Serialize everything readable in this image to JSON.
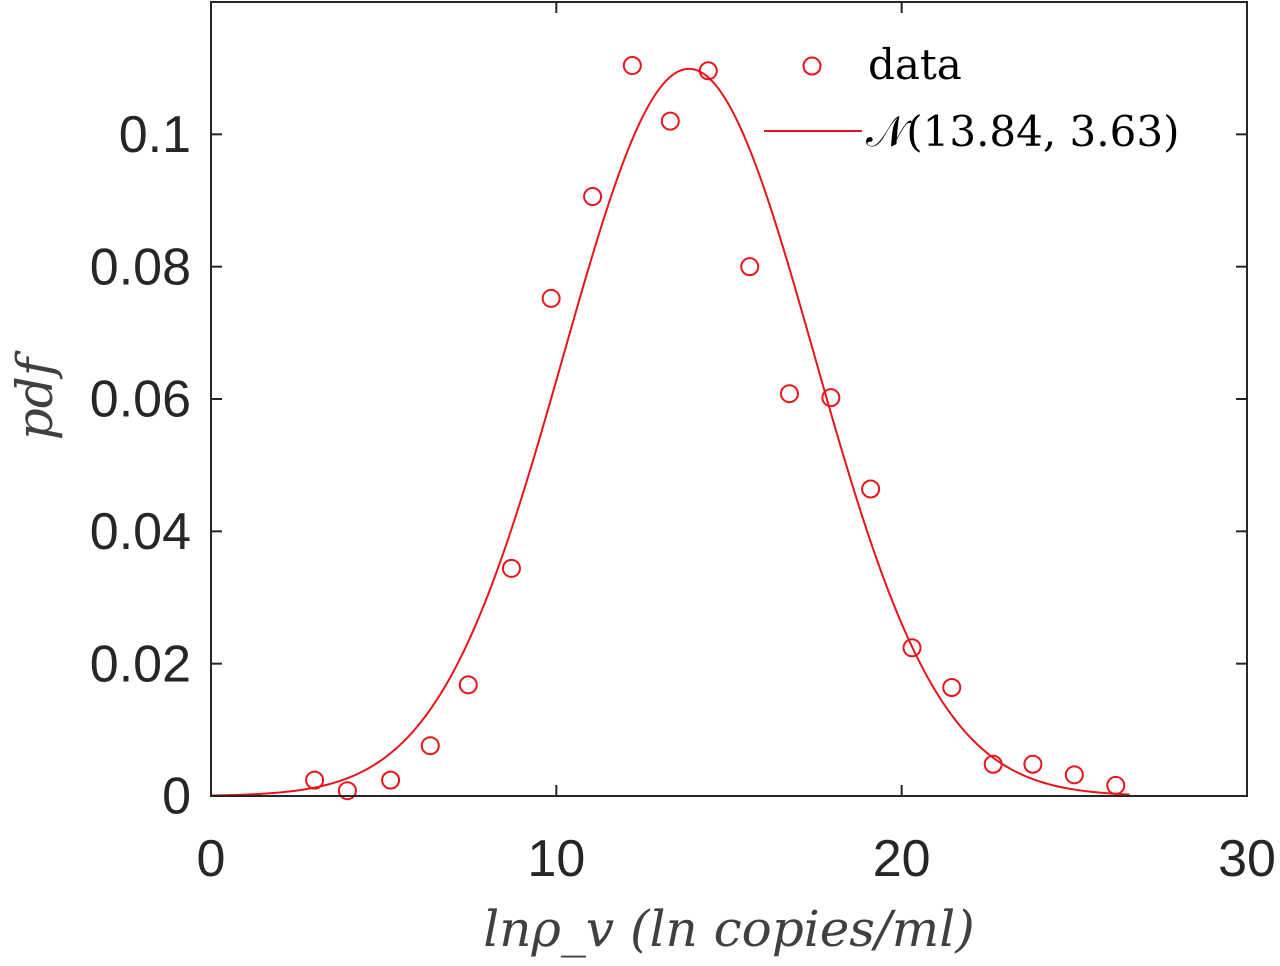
{
  "chart_data": {
    "type": "scatter",
    "xlabel": "lnρ_v  (ln copies/ml)",
    "ylabel": "pdf",
    "xlim": [
      0,
      30
    ],
    "ylim": [
      0,
      0.12
    ],
    "x_ticks": [
      0,
      10,
      20,
      30
    ],
    "x_tick_labels": [
      "0",
      "10",
      "20",
      "30"
    ],
    "y_ticks": [
      0,
      0.02,
      0.04,
      0.06,
      0.08,
      0.1
    ],
    "y_tick_labels": [
      "0",
      "0.02",
      "0.04",
      "0.06",
      "0.08",
      "0.1"
    ],
    "grid": false,
    "box": true,
    "legend_position": "top-right",
    "accent_color": "#e8141b",
    "axis_color": "#262626",
    "series": [
      {
        "name": "data",
        "kind": "markers",
        "marker": "open-circle",
        "x": [
          3.0,
          3.95,
          5.2,
          6.35,
          7.45,
          8.7,
          9.85,
          11.05,
          12.2,
          13.3,
          14.4,
          15.6,
          16.75,
          17.95,
          19.1,
          20.3,
          21.45,
          22.65,
          23.8,
          25.0,
          26.2
        ],
        "y": [
          0.0024,
          0.0008,
          0.0024,
          0.0076,
          0.0168,
          0.0344,
          0.0752,
          0.0906,
          0.1104,
          0.102,
          0.1096,
          0.08,
          0.0608,
          0.0602,
          0.0464,
          0.0224,
          0.0164,
          0.0048,
          0.0048,
          0.0032,
          0.0016
        ]
      },
      {
        "name": "𝒩(13.84, 3.63)",
        "kind": "line",
        "distribution": "normal",
        "mean": 13.84,
        "sd": 3.63
      }
    ]
  }
}
